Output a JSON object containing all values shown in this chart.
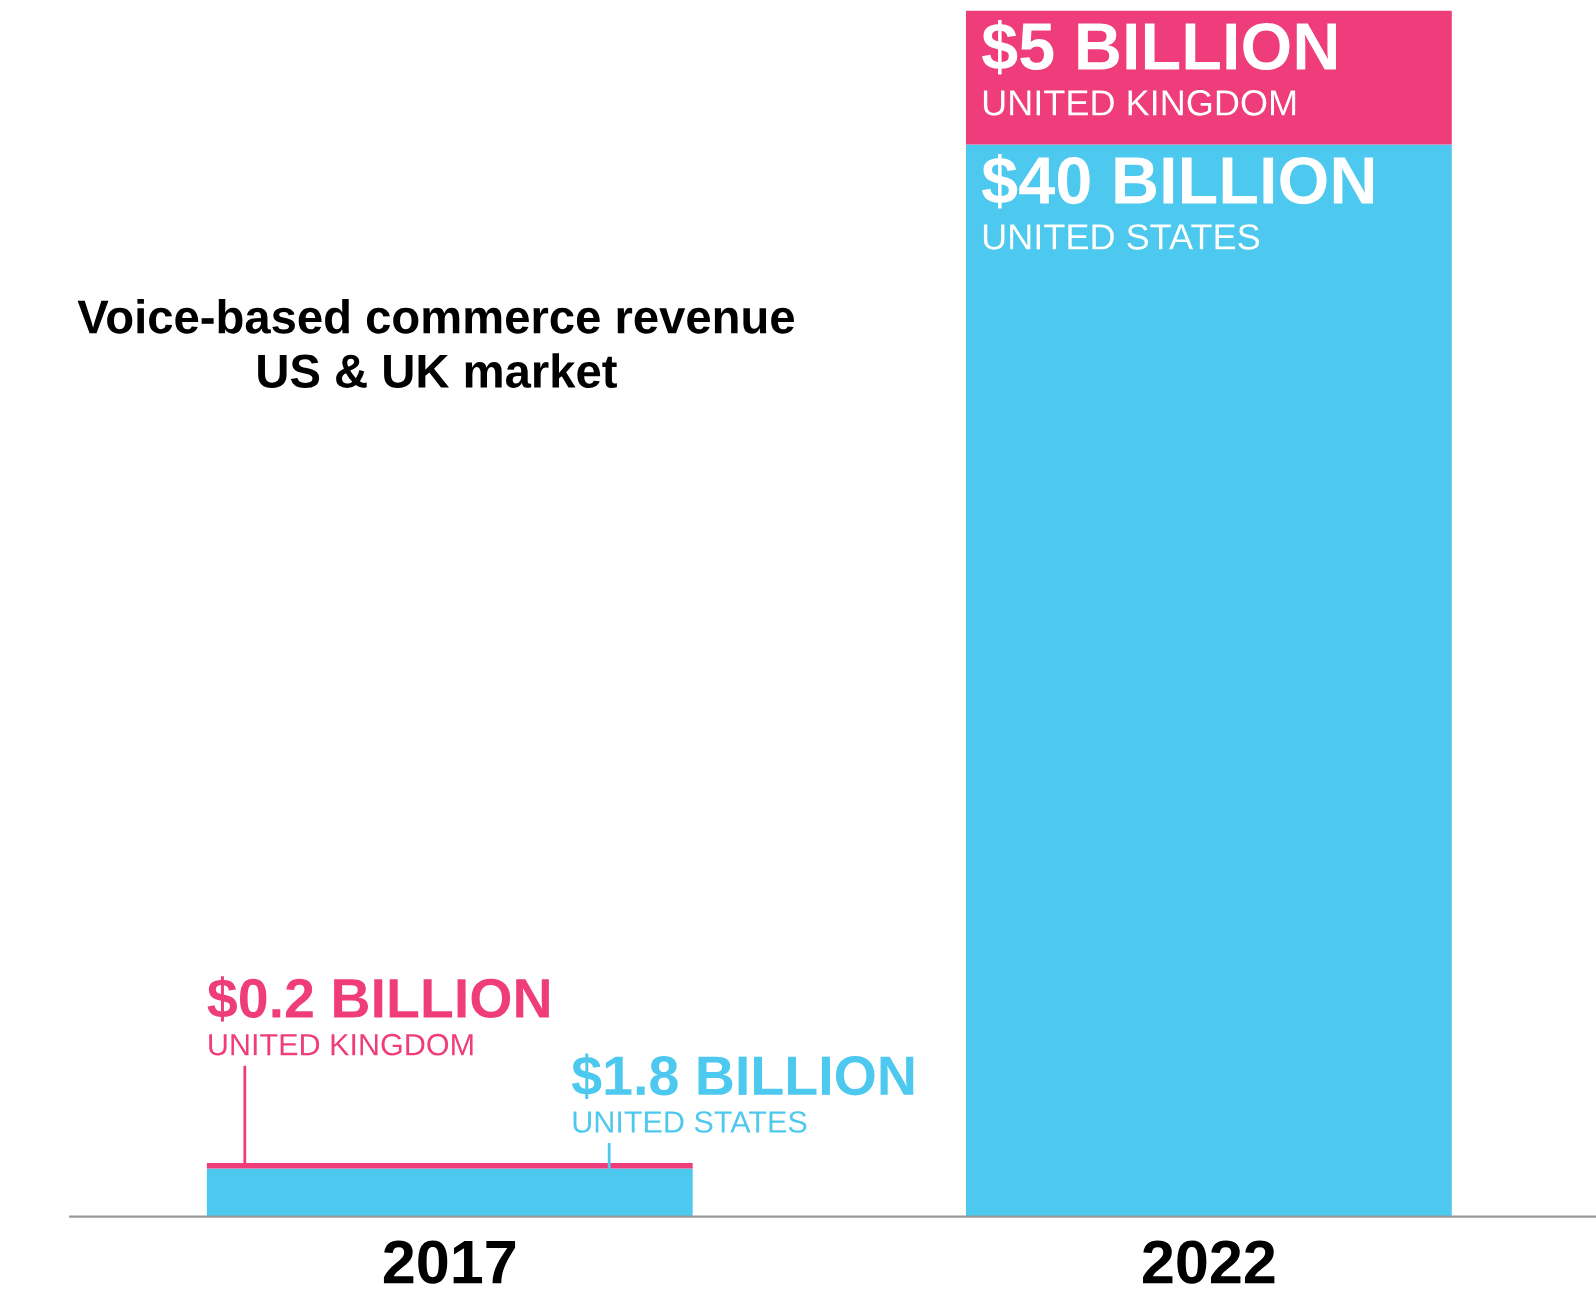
{
  "chart_data": {
    "type": "bar",
    "title": "Voice-based commerce revenue\nUS & UK market",
    "categories": [
      "2017",
      "2022"
    ],
    "stacked": true,
    "ylim": [
      0,
      45
    ],
    "legend": false,
    "grid": false,
    "series": [
      {
        "name": "UNITED STATES",
        "color": "#4dc8ee",
        "values": [
          1.8,
          40
        ],
        "value_labels": [
          "$1.8 BILLION",
          "$40 BILLION"
        ]
      },
      {
        "name": "UNITED KINGDOM",
        "color": "#ee3d7a",
        "values": [
          0.2,
          5
        ],
        "value_labels": [
          "$0.2 BILLION",
          "$5 BILLION"
        ]
      }
    ]
  }
}
